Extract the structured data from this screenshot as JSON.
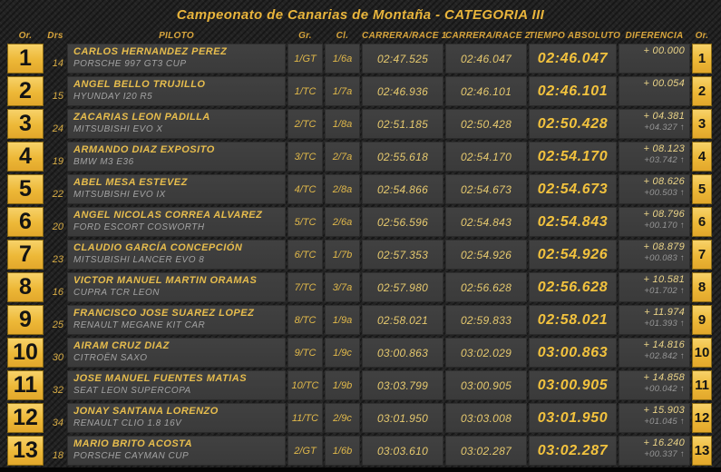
{
  "title": "Campeonato de Canarias de Montaña - CATEGORIA III",
  "colors": {
    "background": "#232323",
    "cell_background": "#3b3b3b",
    "accent_yellow": "#edb837",
    "title_yellow": "#e9b53c",
    "driver_yellow": "#e7bd4d",
    "time_yellow": "#e6c96e",
    "total_yellow": "#f2c23e",
    "car_gray": "#a3a3a3",
    "diff_prev_gray": "#979797",
    "position_text": "#141414"
  },
  "table": {
    "headers": {
      "or_left": "Or.",
      "drs": "Drs",
      "piloto": "PILOTO",
      "gr": "Gr.",
      "cl": "Cl.",
      "race1": "CARRERA/RACE 1",
      "race2": "CARRERA/RACE 2",
      "total": "TIEMPO ABSOLUTO",
      "diff": "DIFERENCIA",
      "or_right": "Or."
    },
    "rows": [
      {
        "pos": "1",
        "drs": "14",
        "driver": "CARLOS HERNANDEZ PEREZ",
        "car": "PORSCHE 997 GT3 CUP",
        "gr": "1/GT",
        "cl": "1/6a",
        "race1": "02:47.525",
        "race2": "02:46.047",
        "total": "02:46.047",
        "diff_total": "+ 00.000",
        "diff_prev": ""
      },
      {
        "pos": "2",
        "drs": "15",
        "driver": "ANGEL BELLO TRUJILLO",
        "car": "HYUNDAY I20 R5",
        "gr": "1/TC",
        "cl": "1/7a",
        "race1": "02:46.936",
        "race2": "02:46.101",
        "total": "02:46.101",
        "diff_total": "+ 00.054",
        "diff_prev": ""
      },
      {
        "pos": "3",
        "drs": "24",
        "driver": "ZACARIAS LEON PADILLA",
        "car": "MITSUBISHI EVO X",
        "gr": "2/TC",
        "cl": "1/8a",
        "race1": "02:51.185",
        "race2": "02:50.428",
        "total": "02:50.428",
        "diff_total": "+ 04.381",
        "diff_prev": "+04.327 ↑"
      },
      {
        "pos": "4",
        "drs": "19",
        "driver": "ARMANDO DIAZ EXPOSITO",
        "car": "BMW M3 E36",
        "gr": "3/TC",
        "cl": "2/7a",
        "race1": "02:55.618",
        "race2": "02:54.170",
        "total": "02:54.170",
        "diff_total": "+ 08.123",
        "diff_prev": "+03.742 ↑"
      },
      {
        "pos": "5",
        "drs": "22",
        "driver": "ABEL MESA ESTEVEZ",
        "car": "MITSUBISHI EVO IX",
        "gr": "4/TC",
        "cl": "2/8a",
        "race1": "02:54.866",
        "race2": "02:54.673",
        "total": "02:54.673",
        "diff_total": "+ 08.626",
        "diff_prev": "+00.503 ↑"
      },
      {
        "pos": "6",
        "drs": "20",
        "driver": "ANGEL NICOLAS CORREA ALVAREZ",
        "car": "FORD ESCORT COSWORTH",
        "gr": "5/TC",
        "cl": "2/6a",
        "race1": "02:56.596",
        "race2": "02:54.843",
        "total": "02:54.843",
        "diff_total": "+ 08.796",
        "diff_prev": "+00.170 ↑"
      },
      {
        "pos": "7",
        "drs": "23",
        "driver": "CLAUDIO GARCÍA CONCEPCIÓN",
        "car": "MITSUBISHI LANCER EVO 8",
        "gr": "6/TC",
        "cl": "1/7b",
        "race1": "02:57.353",
        "race2": "02:54.926",
        "total": "02:54.926",
        "diff_total": "+ 08.879",
        "diff_prev": "+00.083 ↑"
      },
      {
        "pos": "8",
        "drs": "16",
        "driver": "VICTOR MANUEL MARTIN ORAMAS",
        "car": "CUPRA TCR LEON",
        "gr": "7/TC",
        "cl": "3/7a",
        "race1": "02:57.980",
        "race2": "02:56.628",
        "total": "02:56.628",
        "diff_total": "+ 10.581",
        "diff_prev": "+01.702 ↑"
      },
      {
        "pos": "9",
        "drs": "25",
        "driver": "FRANCISCO JOSE SUAREZ LOPEZ",
        "car": "RENAULT MEGANE KIT CAR",
        "gr": "8/TC",
        "cl": "1/9a",
        "race1": "02:58.021",
        "race2": "02:59.833",
        "total": "02:58.021",
        "diff_total": "+ 11.974",
        "diff_prev": "+01.393 ↑"
      },
      {
        "pos": "10",
        "drs": "30",
        "driver": "AIRAM CRUZ DIAZ",
        "car": "CITROËN SAXO",
        "gr": "9/TC",
        "cl": "1/9c",
        "race1": "03:00.863",
        "race2": "03:02.029",
        "total": "03:00.863",
        "diff_total": "+ 14.816",
        "diff_prev": "+02.842 ↑"
      },
      {
        "pos": "11",
        "drs": "32",
        "driver": "JOSE MANUEL FUENTES MATIAS",
        "car": "SEAT LEON SUPERCOPA",
        "gr": "10/TC",
        "cl": "1/9b",
        "race1": "03:03.799",
        "race2": "03:00.905",
        "total": "03:00.905",
        "diff_total": "+ 14.858",
        "diff_prev": "+00.042 ↑"
      },
      {
        "pos": "12",
        "drs": "34",
        "driver": "JONAY SANTANA LORENZO",
        "car": "RENAULT CLIO 1.8 16V",
        "gr": "11/TC",
        "cl": "2/9c",
        "race1": "03:01.950",
        "race2": "03:03.008",
        "total": "03:01.950",
        "diff_total": "+ 15.903",
        "diff_prev": "+01.045 ↑"
      },
      {
        "pos": "13",
        "drs": "18",
        "driver": "MARIO BRITO ACOSTA",
        "car": "PORSCHE CAYMAN CUP",
        "gr": "2/GT",
        "cl": "1/6b",
        "race1": "03:03.610",
        "race2": "03:02.287",
        "total": "03:02.287",
        "diff_total": "+ 16.240",
        "diff_prev": "+00.337 ↑"
      }
    ]
  }
}
